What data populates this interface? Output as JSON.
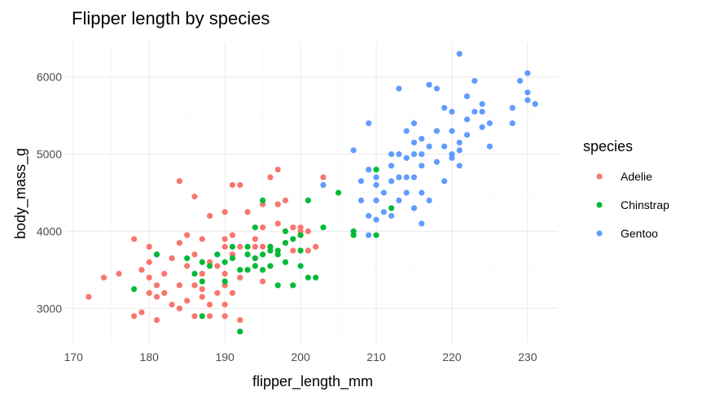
{
  "chart_data": {
    "type": "scatter",
    "title": "Flipper length by species",
    "xlabel": "flipper_length_mm",
    "ylabel": "body_mass_g",
    "xlim": [
      169,
      234
    ],
    "ylim": [
      2550,
      6450
    ],
    "x_ticks": [
      170,
      180,
      190,
      200,
      210,
      220,
      230
    ],
    "y_ticks": [
      3000,
      4000,
      5000,
      6000
    ],
    "grid": true,
    "legend": {
      "title": "species",
      "position": "right"
    },
    "series": [
      {
        "name": "Adelie",
        "color": "#F8766D",
        "points": [
          [
            172,
            3150
          ],
          [
            174,
            3400
          ],
          [
            176,
            3450
          ],
          [
            178,
            2900
          ],
          [
            178,
            3900
          ],
          [
            179,
            2950
          ],
          [
            180,
            3800
          ],
          [
            180,
            3600
          ],
          [
            180,
            3400
          ],
          [
            180,
            3200
          ],
          [
            181,
            3700
          ],
          [
            181,
            3300
          ],
          [
            181,
            3150
          ],
          [
            181,
            2850
          ],
          [
            182,
            3200
          ],
          [
            182,
            3450
          ],
          [
            183,
            3050
          ],
          [
            183,
            3650
          ],
          [
            184,
            3000
          ],
          [
            184,
            3300
          ],
          [
            184,
            4650
          ],
          [
            185,
            3550
          ],
          [
            185,
            3950
          ],
          [
            185,
            3100
          ],
          [
            186,
            2900
          ],
          [
            186,
            3700
          ],
          [
            186,
            4450
          ],
          [
            187,
            3250
          ],
          [
            187,
            3450
          ],
          [
            187,
            3150
          ],
          [
            187,
            3900
          ],
          [
            188,
            2900
          ],
          [
            188,
            3600
          ],
          [
            188,
            4200
          ],
          [
            189,
            3550
          ],
          [
            189,
            3200
          ],
          [
            190,
            4250
          ],
          [
            190,
            3900
          ],
          [
            190,
            3450
          ],
          [
            190,
            3800
          ],
          [
            190,
            3300
          ],
          [
            190,
            3050
          ],
          [
            191,
            3700
          ],
          [
            191,
            3950
          ],
          [
            191,
            4600
          ],
          [
            191,
            3200
          ],
          [
            192,
            4600
          ],
          [
            192,
            3400
          ],
          [
            192,
            3800
          ],
          [
            193,
            3500
          ],
          [
            193,
            4250
          ],
          [
            194,
            3800
          ],
          [
            194,
            3900
          ],
          [
            195,
            3800
          ],
          [
            195,
            4050
          ],
          [
            195,
            3350
          ],
          [
            195,
            4350
          ],
          [
            196,
            4700
          ],
          [
            196,
            3550
          ],
          [
            196,
            3800
          ],
          [
            197,
            4100
          ],
          [
            197,
            4350
          ],
          [
            197,
            4800
          ],
          [
            198,
            3850
          ],
          [
            198,
            4400
          ],
          [
            199,
            4050
          ],
          [
            199,
            3750
          ],
          [
            200,
            4000
          ],
          [
            200,
            4050
          ],
          [
            201,
            3750
          ],
          [
            201,
            4000
          ],
          [
            202,
            3800
          ],
          [
            203,
            4700
          ],
          [
            190,
            2900
          ],
          [
            192,
            2850
          ],
          [
            194,
            3650
          ],
          [
            188,
            3050
          ],
          [
            186,
            3300
          ],
          [
            184,
            3850
          ],
          [
            179,
            3500
          ]
        ]
      },
      {
        "name": "Chinstrap",
        "color": "#00BA38",
        "points": [
          [
            178,
            3250
          ],
          [
            181,
            3700
          ],
          [
            185,
            3650
          ],
          [
            186,
            3450
          ],
          [
            187,
            2900
          ],
          [
            187,
            3350
          ],
          [
            187,
            3600
          ],
          [
            188,
            3550
          ],
          [
            189,
            3700
          ],
          [
            190,
            3350
          ],
          [
            190,
            3600
          ],
          [
            191,
            3650
          ],
          [
            191,
            3800
          ],
          [
            192,
            3500
          ],
          [
            192,
            2700
          ],
          [
            193,
            3500
          ],
          [
            193,
            3700
          ],
          [
            193,
            3800
          ],
          [
            194,
            3550
          ],
          [
            194,
            4050
          ],
          [
            195,
            3700
          ],
          [
            195,
            4400
          ],
          [
            195,
            3500
          ],
          [
            196,
            3550
          ],
          [
            196,
            3800
          ],
          [
            197,
            3300
          ],
          [
            197,
            3700
          ],
          [
            197,
            3750
          ],
          [
            198,
            3600
          ],
          [
            198,
            3850
          ],
          [
            198,
            4000
          ],
          [
            199,
            3300
          ],
          [
            199,
            3900
          ],
          [
            200,
            3750
          ],
          [
            200,
            3950
          ],
          [
            201,
            3400
          ],
          [
            201,
            4400
          ],
          [
            202,
            3400
          ],
          [
            203,
            4050
          ],
          [
            205,
            4500
          ],
          [
            207,
            3950
          ],
          [
            207,
            4000
          ],
          [
            210,
            4800
          ],
          [
            210,
            3950
          ],
          [
            212,
            4300
          ],
          [
            196,
            3750
          ],
          [
            194,
            3650
          ],
          [
            200,
            3550
          ]
        ]
      },
      {
        "name": "Gentoo",
        "color": "#619CFF",
        "points": [
          [
            203,
            4600
          ],
          [
            207,
            5050
          ],
          [
            208,
            4400
          ],
          [
            208,
            4650
          ],
          [
            209,
            3950
          ],
          [
            209,
            4200
          ],
          [
            209,
            4800
          ],
          [
            209,
            5400
          ],
          [
            210,
            4150
          ],
          [
            210,
            4400
          ],
          [
            210,
            4600
          ],
          [
            211,
            4250
          ],
          [
            211,
            4500
          ],
          [
            212,
            4200
          ],
          [
            212,
            4650
          ],
          [
            212,
            4850
          ],
          [
            213,
            4400
          ],
          [
            213,
            4700
          ],
          [
            213,
            5000
          ],
          [
            213,
            5850
          ],
          [
            214,
            4500
          ],
          [
            214,
            4700
          ],
          [
            214,
            4950
          ],
          [
            215,
            4300
          ],
          [
            215,
            4700
          ],
          [
            215,
            5000
          ],
          [
            215,
            5400
          ],
          [
            216,
            4100
          ],
          [
            216,
            4850
          ],
          [
            216,
            5000
          ],
          [
            216,
            5200
          ],
          [
            217,
            4400
          ],
          [
            217,
            5100
          ],
          [
            218,
            4900
          ],
          [
            218,
            5300
          ],
          [
            219,
            5100
          ],
          [
            219,
            5600
          ],
          [
            220,
            4950
          ],
          [
            220,
            5300
          ],
          [
            220,
            5550
          ],
          [
            221,
            5050
          ],
          [
            221,
            5150
          ],
          [
            221,
            6300
          ],
          [
            222,
            5250
          ],
          [
            222,
            5450
          ],
          [
            222,
            5750
          ],
          [
            223,
            5550
          ],
          [
            223,
            5950
          ],
          [
            224,
            5350
          ],
          [
            224,
            5550
          ],
          [
            225,
            5100
          ],
          [
            225,
            5400
          ],
          [
            228,
            5600
          ],
          [
            228,
            5400
          ],
          [
            229,
            5950
          ],
          [
            230,
            5800
          ],
          [
            230,
            6050
          ],
          [
            230,
            5700
          ],
          [
            231,
            5650
          ],
          [
            220,
            5000
          ],
          [
            217,
            5900
          ],
          [
            224,
            5650
          ],
          [
            218,
            5850
          ],
          [
            214,
            5300
          ],
          [
            212,
            5000
          ],
          [
            219,
            4650
          ],
          [
            221,
            4850
          ],
          [
            216,
            4500
          ],
          [
            210,
            4700
          ],
          [
            215,
            5150
          ]
        ]
      }
    ]
  }
}
